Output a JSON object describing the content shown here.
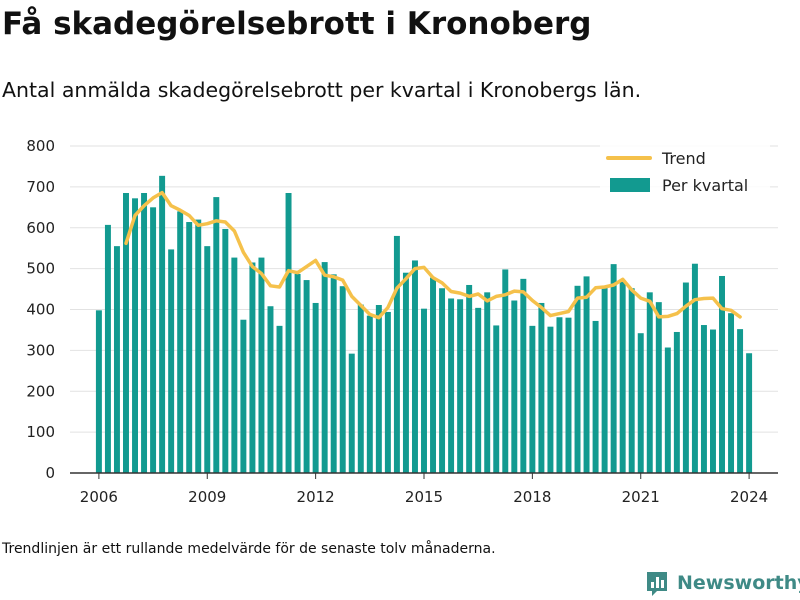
{
  "title": "Få skadegörelsebrott i Kronoberg",
  "subtitle": "Antal anmälda skadegörelsebrott per kvartal i Kronobergs län.",
  "footnote": "Trendlinjen är ett rullande medelvärde för de senaste tolv månaderna.",
  "brand": {
    "name": "Newsworthy",
    "logo_icon": "bar-chart-logo-icon"
  },
  "colors": {
    "bars": "#129a90",
    "trend": "#f5c14b",
    "grid": "#e2e2e2",
    "axis": "#333333",
    "brand": "#3f8a86"
  },
  "chart_data": {
    "type": "bar",
    "ylim": [
      0,
      800
    ],
    "xlim": [
      2005.2,
      2024.8
    ],
    "yticks": [
      0,
      100,
      200,
      300,
      400,
      500,
      600,
      700,
      800
    ],
    "xticks": [
      2006,
      2009,
      2012,
      2015,
      2018,
      2021,
      2024
    ],
    "grid": true,
    "legend_position": "top-right",
    "series": [
      {
        "name": "Per kvartal",
        "kind": "bar",
        "x_start": 2006,
        "step": 0.25,
        "values": [
          398,
          607,
          555,
          685,
          672,
          685,
          650,
          727,
          547,
          640,
          614,
          620,
          555,
          675,
          597,
          527,
          375,
          515,
          527,
          408,
          360,
          685,
          487,
          472,
          416,
          516,
          486,
          457,
          292,
          412,
          385,
          411,
          394,
          580,
          490,
          520,
          402,
          478,
          452,
          427,
          425,
          460,
          404,
          442,
          361,
          498,
          422,
          475,
          360,
          416,
          358,
          381,
          380,
          458,
          481,
          372,
          457,
          511,
          472,
          452,
          342,
          442,
          418,
          307,
          345,
          466,
          512,
          362,
          351,
          482,
          391,
          352,
          293
        ]
      },
      {
        "name": "Trend",
        "kind": "line",
        "x_start": 2006.75,
        "step": 0.25,
        "values": [
          562,
          630,
          654,
          673,
          686,
          654,
          643,
          630,
          606,
          610,
          617,
          614,
          592,
          540,
          505,
          488,
          458,
          455,
          495,
          490,
          505,
          520,
          484,
          480,
          472,
          432,
          410,
          388,
          380,
          405,
          452,
          475,
          500,
          503,
          478,
          465,
          444,
          440,
          432,
          438,
          421,
          432,
          436,
          445,
          443,
          422,
          405,
          385,
          390,
          395,
          428,
          430,
          453,
          455,
          460,
          474,
          448,
          428,
          420,
          382,
          383,
          390,
          408,
          424,
          427,
          428,
          402,
          398,
          382
        ]
      }
    ]
  }
}
